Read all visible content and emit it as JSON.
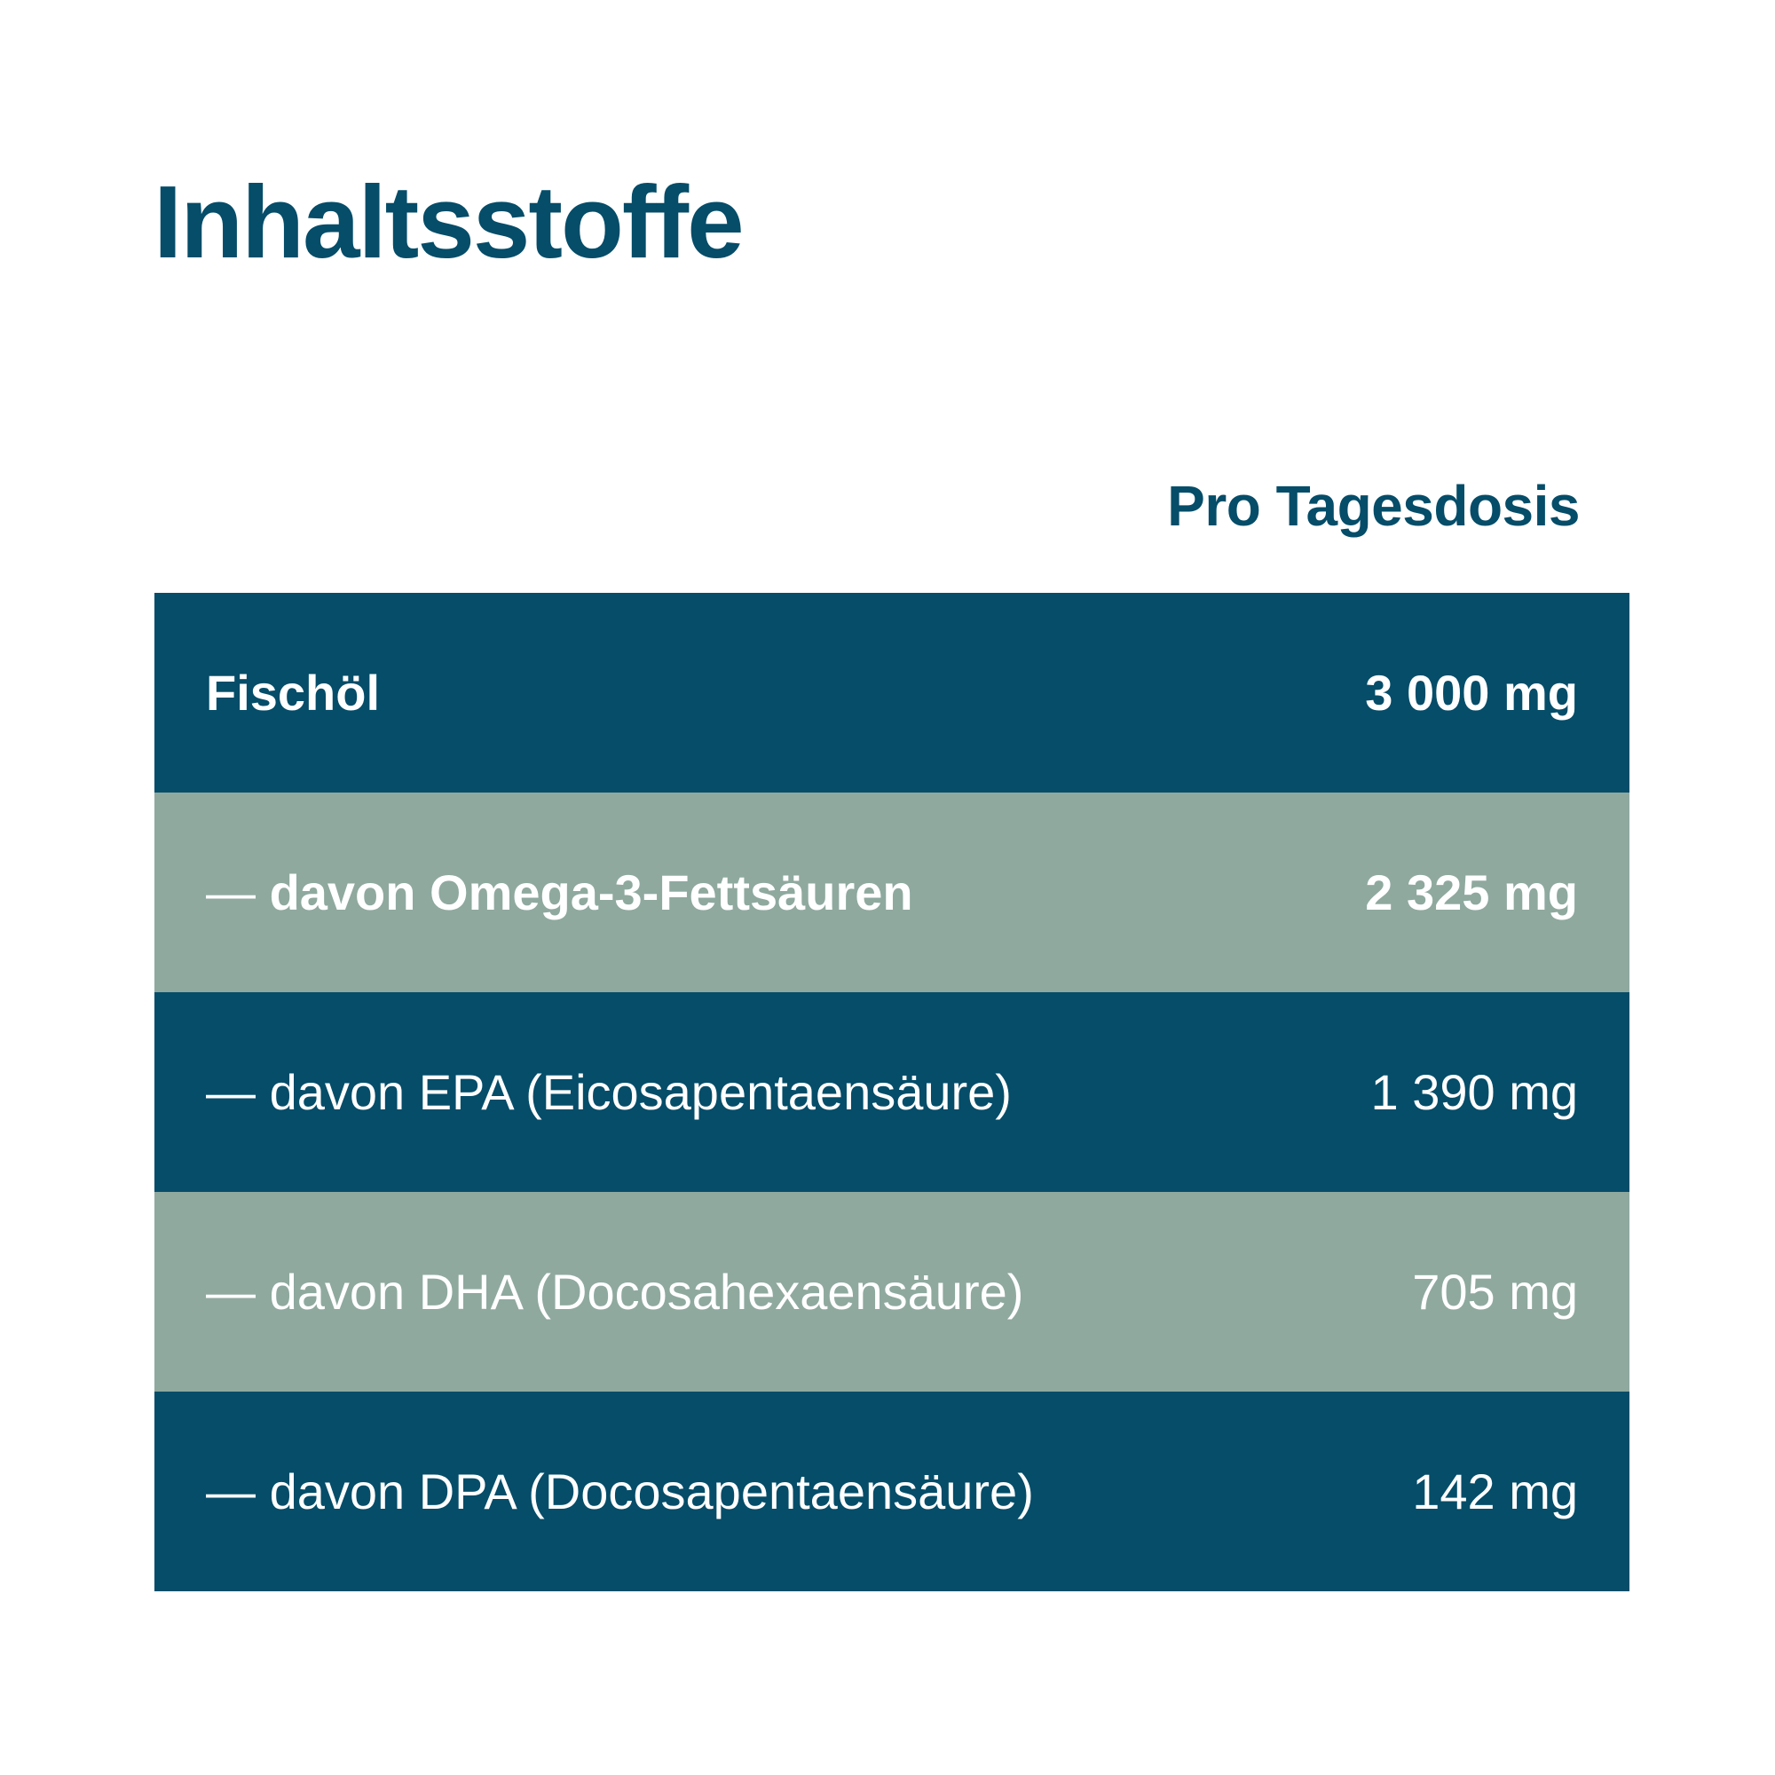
{
  "title": "Inhaltsstoffe",
  "column_header": "Pro Tagesdosis",
  "colors": {
    "primary": "#054d69",
    "secondary": "#8fa99f",
    "text_on_rows": "#ffffff"
  },
  "rows": [
    {
      "prefix": "",
      "name": "Fischöl",
      "amount": "3 000 mg"
    },
    {
      "prefix": "— ",
      "name": "davon Omega-3-Fettsäuren",
      "amount": "2 325 mg"
    },
    {
      "prefix": "— ",
      "name": "davon EPA (Eicosapentaensäure)",
      "amount": "1 390 mg"
    },
    {
      "prefix": "— ",
      "name": "davon DHA (Docosahexaensäure)",
      "amount": "705 mg"
    },
    {
      "prefix": "— ",
      "name": "davon DPA (Docosapentaensäure)",
      "amount": "142 mg"
    }
  ]
}
